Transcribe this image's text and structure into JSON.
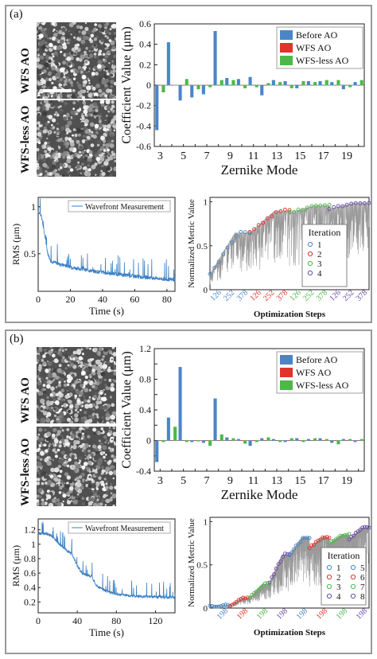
{
  "panels": [
    {
      "label": "(a)",
      "images": [
        {
          "label": "WFS AO",
          "seed": 11
        },
        {
          "label": "WFS-less AO",
          "seed": 23
        }
      ],
      "bar": {
        "type": "bar",
        "ylabel": "Coefficient Value (μm)",
        "xlabel": "Zernike Mode",
        "ylim": [
          -0.6,
          0.6
        ],
        "yticks": [
          -0.6,
          -0.4,
          -0.2,
          0,
          0.2,
          0.4,
          0.6
        ],
        "yticklabels": [
          "-0.6",
          "-0.4",
          "-0.2",
          "0",
          "0.2",
          "0.4",
          "0.6"
        ],
        "categories": [
          3,
          4,
          5,
          6,
          7,
          8,
          9,
          10,
          11,
          12,
          13,
          14,
          15,
          16,
          17,
          18,
          19,
          20
        ],
        "xticklabels": [
          "3",
          "5",
          "7",
          "9",
          "11",
          "13",
          "15",
          "17",
          "19"
        ],
        "legend": [
          "Before AO",
          "WFS AO",
          "WFS-less AO"
        ],
        "colors": [
          "#4a86c6",
          "#e0342b",
          "#4db848"
        ],
        "series": [
          {
            "name": "Before AO",
            "values": [
              -0.44,
              0.42,
              -0.15,
              -0.12,
              -0.09,
              0.53,
              0.07,
              0.06,
              0.08,
              -0.1,
              0.05,
              0.04,
              -0.03,
              0.04,
              0.04,
              0.03,
              -0.04,
              0.03
            ]
          },
          {
            "name": "WFS AO",
            "values": [
              0,
              0,
              0,
              0,
              0,
              0,
              0,
              0,
              0,
              0,
              0,
              0,
              0,
              0,
              0,
              0,
              0,
              0
            ]
          },
          {
            "name": "WFS-less AO",
            "values": [
              -0.07,
              0.0,
              0.06,
              -0.04,
              -0.02,
              0.05,
              0.05,
              -0.03,
              -0.02,
              0.02,
              0.03,
              -0.03,
              0.04,
              0.03,
              0.05,
              0.05,
              -0.02,
              0.05
            ]
          }
        ]
      },
      "rms": {
        "type": "line",
        "ylabel": "RMS (μm)",
        "xlabel": "Time (s)",
        "legend": "Wavefront Measurement",
        "xlim": [
          0,
          85
        ],
        "ylim": [
          0.1,
          1.1
        ],
        "xticks": [
          0,
          20,
          40,
          60,
          80
        ],
        "yticks": [
          0.5,
          1
        ],
        "yticklabels": [
          "0.5",
          "1"
        ],
        "trend": [
          [
            0,
            0.95
          ],
          [
            2,
            0.9
          ],
          [
            4,
            0.7
          ],
          [
            6,
            0.5
          ],
          [
            8,
            0.42
          ],
          [
            15,
            0.38
          ],
          [
            25,
            0.34
          ],
          [
            40,
            0.3
          ],
          [
            60,
            0.26
          ],
          [
            85,
            0.22
          ]
        ]
      },
      "metric": {
        "type": "scatter",
        "ylabel": "Normalized Metric Value",
        "xlabel": "Optimization Steps",
        "ylim": [
          0,
          1.05
        ],
        "yticks": [
          0,
          0.5,
          1
        ],
        "yticklabels": [
          "0",
          "0.5",
          "1"
        ],
        "legend_title": "Iteration",
        "iterations": [
          "1",
          "2",
          "3",
          "4"
        ],
        "iter_colors": [
          "#4a86c6",
          "#e0342b",
          "#4db848",
          "#6a4aa8"
        ],
        "xticklabels": [
          "126",
          "252",
          "378",
          "126",
          "252",
          "378",
          "126",
          "252",
          "378",
          "126",
          "252",
          "378"
        ],
        "levels": [
          [
            0.18,
            0.65
          ],
          [
            0.65,
            0.9
          ],
          [
            0.88,
            0.96
          ],
          [
            0.92,
            0.99
          ]
        ]
      }
    },
    {
      "label": "(b)",
      "images": [
        {
          "label": "WFS AO",
          "seed": 37
        },
        {
          "label": "WFS-less AO",
          "seed": 53
        }
      ],
      "bar": {
        "type": "bar",
        "ylabel": "Coefficient Value (μm)",
        "xlabel": "Zernike Mode",
        "ylim": [
          -0.4,
          1.2
        ],
        "yticks": [
          -0.4,
          -0.2,
          0,
          0.2,
          0.4,
          0.6,
          0.8,
          1,
          1.2
        ],
        "yticklabels": [
          "-0.4",
          "",
          "0",
          "",
          "0.4",
          "",
          "0.8",
          "",
          "1.2"
        ],
        "categories": [
          3,
          4,
          5,
          6,
          7,
          8,
          9,
          10,
          11,
          12,
          13,
          14,
          15,
          16,
          17,
          18,
          19,
          20
        ],
        "xticklabels": [
          "3",
          "5",
          "7",
          "9",
          "11",
          "13",
          "15",
          "17",
          "19"
        ],
        "legend": [
          "Before AO",
          "WFS AO",
          "WFS-less AO"
        ],
        "colors": [
          "#4a86c6",
          "#e0342b",
          "#4db848"
        ],
        "series": [
          {
            "name": "Before AO",
            "values": [
              -0.28,
              0.3,
              0.96,
              -0.02,
              -0.03,
              0.55,
              0.04,
              0.02,
              -0.07,
              0.03,
              0.02,
              -0.02,
              0.03,
              0.02,
              0.03,
              -0.03,
              0.02,
              -0.02
            ]
          },
          {
            "name": "WFS AO",
            "values": [
              0,
              0,
              0,
              0,
              0,
              0,
              0,
              0,
              0,
              0,
              0,
              0,
              0,
              0,
              0,
              0,
              0,
              0
            ]
          },
          {
            "name": "WFS-less AO",
            "values": [
              -0.02,
              0.18,
              -0.02,
              -0.01,
              -0.07,
              0.08,
              0.03,
              -0.04,
              -0.02,
              0.04,
              -0.02,
              0.03,
              -0.02,
              0.03,
              0.02,
              -0.05,
              0.02,
              0.02
            ]
          }
        ]
      },
      "rms": {
        "type": "line",
        "ylabel": "RMS (μm)",
        "xlabel": "Time (s)",
        "legend": "Wavefront Measurement",
        "xlim": [
          0,
          140
        ],
        "ylim": [
          0.05,
          1.35
        ],
        "xticks": [
          0,
          40,
          80,
          120
        ],
        "yticks": [
          0.2,
          0.4,
          0.6,
          0.8,
          1,
          1.2
        ],
        "yticklabels": [
          "0.2",
          "0.4",
          "0.6",
          "0.8",
          "1",
          "1.2"
        ],
        "trend": [
          [
            0,
            1.15
          ],
          [
            10,
            1.14
          ],
          [
            15,
            1.1
          ],
          [
            22,
            1.0
          ],
          [
            28,
            0.93
          ],
          [
            35,
            0.85
          ],
          [
            40,
            0.7
          ],
          [
            45,
            0.6
          ],
          [
            55,
            0.55
          ],
          [
            60,
            0.42
          ],
          [
            70,
            0.35
          ],
          [
            80,
            0.31
          ],
          [
            100,
            0.28
          ],
          [
            140,
            0.26
          ]
        ]
      },
      "metric": {
        "type": "scatter",
        "ylabel": "Normalized Metric Value",
        "xlabel": "Optimization Steps",
        "ylim": [
          0,
          1.05
        ],
        "yticks": [
          0,
          0.5,
          1
        ],
        "yticklabels": [
          "0",
          "0.5",
          "1"
        ],
        "legend_title": "Iteration",
        "iterations": [
          "1",
          "2",
          "3",
          "4",
          "5",
          "6",
          "7",
          "8"
        ],
        "iter_colors": [
          "#4a86c6",
          "#e0342b",
          "#4db848",
          "#6a4aa8",
          "#4a86c6",
          "#e0342b",
          "#4db848",
          "#6a4aa8"
        ],
        "xticklabels": [
          "198",
          "198",
          "198",
          "198",
          "198",
          "198",
          "198",
          "198"
        ],
        "levels": [
          [
            0.02,
            0.03
          ],
          [
            0.03,
            0.12
          ],
          [
            0.12,
            0.28
          ],
          [
            0.3,
            0.62
          ],
          [
            0.62,
            0.82
          ],
          [
            0.7,
            0.82
          ],
          [
            0.75,
            0.85
          ],
          [
            0.8,
            0.93
          ]
        ]
      }
    }
  ]
}
